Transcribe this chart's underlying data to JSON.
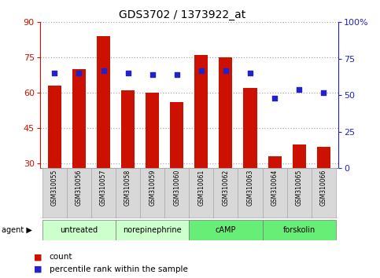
{
  "title": "GDS3702 / 1373922_at",
  "samples": [
    "GSM310055",
    "GSM310056",
    "GSM310057",
    "GSM310058",
    "GSM310059",
    "GSM310060",
    "GSM310061",
    "GSM310062",
    "GSM310063",
    "GSM310064",
    "GSM310065",
    "GSM310066"
  ],
  "counts": [
    63,
    70,
    84,
    61,
    60,
    56,
    76,
    75,
    62,
    33,
    38,
    37
  ],
  "percentile": [
    65,
    65,
    67,
    65,
    64,
    64,
    67,
    67,
    65,
    48,
    54,
    52
  ],
  "ylim_left": [
    28,
    90
  ],
  "ylim_right": [
    0,
    100
  ],
  "yticks_left": [
    30,
    45,
    60,
    75,
    90
  ],
  "yticks_right": [
    0,
    25,
    50,
    75,
    100
  ],
  "ytick_labels_right": [
    "0",
    "25",
    "50",
    "75",
    "100%"
  ],
  "bar_color": "#cc1100",
  "dot_color": "#2222cc",
  "bar_width": 0.55,
  "agents": [
    {
      "label": "untreated",
      "start": 0,
      "end": 3
    },
    {
      "label": "norepinephrine",
      "start": 3,
      "end": 6
    },
    {
      "label": "cAMP",
      "start": 6,
      "end": 9
    },
    {
      "label": "forskolin",
      "start": 9,
      "end": 12
    }
  ],
  "agent_color_light": "#ccffcc",
  "agent_color_dark": "#66ee77",
  "sample_box_color": "#d8d8d8",
  "tick_label_color_left": "#cc1100",
  "tick_label_color_right": "#2222cc",
  "grid_linestyle": ":",
  "grid_color": "#aaaaaa",
  "grid_linewidth": 0.9
}
